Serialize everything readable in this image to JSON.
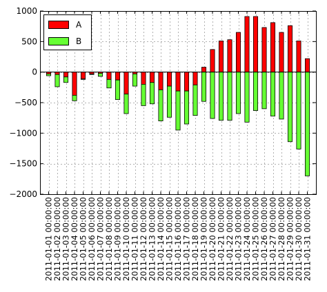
{
  "chart_data": {
    "type": "bar",
    "stacked": true,
    "categories": [
      "2011-01-01 00:00:00",
      "2011-01-02 00:00:00",
      "2011-01-03 00:00:00",
      "2011-01-04 00:00:00",
      "2011-01-05 00:00:00",
      "2011-01-06 00:00:00",
      "2011-01-07 00:00:00",
      "2011-01-08 00:00:00",
      "2011-01-09 00:00:00",
      "2011-01-10 00:00:00",
      "2011-01-11 00:00:00",
      "2011-01-12 00:00:00",
      "2011-01-13 00:00:00",
      "2011-01-14 00:00:00",
      "2011-01-15 00:00:00",
      "2011-01-16 00:00:00",
      "2011-01-17 00:00:00",
      "2011-01-18 00:00:00",
      "2011-01-19 00:00:00",
      "2011-01-20 00:00:00",
      "2011-01-21 00:00:00",
      "2011-01-22 00:00:00",
      "2011-01-23 00:00:00",
      "2011-01-24 00:00:00",
      "2011-01-25 00:00:00",
      "2011-01-26 00:00:00",
      "2011-01-27 00:00:00",
      "2011-01-28 00:00:00",
      "2011-01-29 00:00:00",
      "2011-01-30 00:00:00",
      "2011-01-31 00:00:00"
    ],
    "series": [
      {
        "name": "A",
        "color": "#ff0000",
        "values": [
          -30,
          -40,
          -80,
          -380,
          -110,
          -30,
          -20,
          -120,
          -130,
          -360,
          -30,
          -200,
          -170,
          -290,
          -230,
          -310,
          -310,
          -210,
          80,
          370,
          510,
          530,
          650,
          910,
          910,
          730,
          810,
          650,
          760,
          510,
          220
        ]
      },
      {
        "name": "B",
        "color": "#66ff33",
        "values": [
          -30,
          -200,
          -90,
          -90,
          -10,
          -10,
          -50,
          -140,
          -320,
          -320,
          -200,
          -350,
          -350,
          -510,
          -510,
          -640,
          -540,
          -500,
          -480,
          -760,
          -790,
          -790,
          -680,
          -820,
          -630,
          -600,
          -720,
          -770,
          -1140,
          -1260,
          -1700
        ]
      }
    ],
    "ylim": [
      -2000,
      1000
    ],
    "yticks": [
      1000,
      500,
      0,
      -500,
      -1000,
      -1500,
      -2000
    ],
    "ytick_labels": [
      "1000",
      "500",
      "0",
      "−500",
      "−1000",
      "−1500",
      "−2000"
    ],
    "grid": true,
    "legend_position": "upper-left"
  }
}
